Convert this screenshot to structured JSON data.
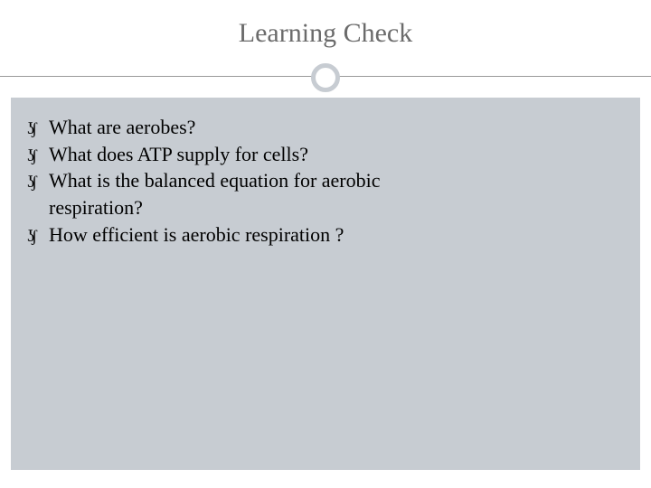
{
  "slide": {
    "title": "Learning Check",
    "title_color": "#6b6b6b",
    "title_fontsize": 30,
    "background_color": "#ffffff",
    "content_background": "#c7ccd2",
    "divider_color": "#9a9a9a",
    "circle_border_color": "#c7ccd2",
    "bullet_glyph": "་",
    "bullets": [
      {
        "text": "What are aerobes?"
      },
      {
        "text": "What does ATP supply for cells?"
      },
      {
        "text": "What is the balanced equation for aerobic",
        "cont": "respiration?"
      },
      {
        "text": "How efficient is aerobic respiration ?"
      }
    ],
    "body_fontsize": 22,
    "body_color": "#000000"
  }
}
